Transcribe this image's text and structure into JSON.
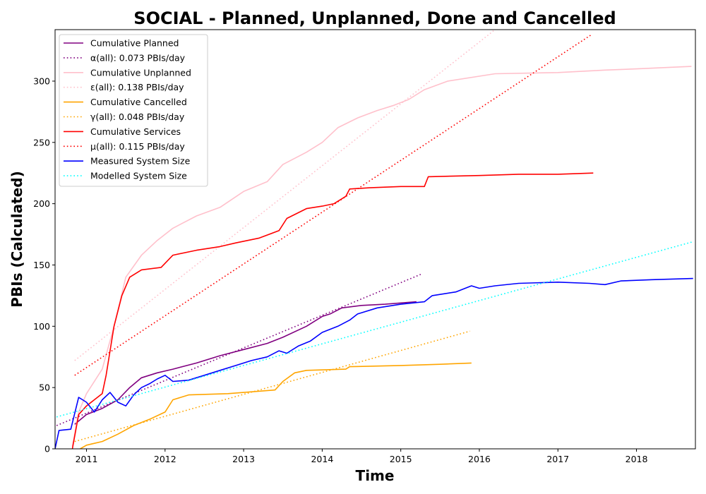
{
  "chart_data": {
    "type": "line",
    "title": "SOCIAL - Planned, Unplanned, Done  and Cancelled",
    "xlabel": "Time",
    "ylabel": "PBIs (Calculated)",
    "xlim": [
      2010.6,
      2018.75
    ],
    "ylim": [
      0,
      342
    ],
    "x_ticks": [
      2011,
      2012,
      2013,
      2014,
      2015,
      2016,
      2017,
      2018
    ],
    "x_tick_labels": [
      "2011",
      "2012",
      "2013",
      "2014",
      "2015",
      "2016",
      "2017",
      "2018"
    ],
    "y_ticks": [
      0,
      50,
      100,
      150,
      200,
      250,
      300
    ],
    "y_tick_labels": [
      "0",
      "50",
      "100",
      "150",
      "200",
      "250",
      "300"
    ],
    "grid": false,
    "legend_position": "top-left",
    "series": [
      {
        "name": "Cumulative Planned",
        "color": "#800080",
        "style": "solid",
        "points": [
          [
            2010.85,
            20
          ],
          [
            2011.0,
            28
          ],
          [
            2011.2,
            33
          ],
          [
            2011.4,
            40
          ],
          [
            2011.55,
            50
          ],
          [
            2011.7,
            58
          ],
          [
            2011.9,
            62
          ],
          [
            2012.1,
            65
          ],
          [
            2012.4,
            70
          ],
          [
            2012.7,
            76
          ],
          [
            2013.0,
            81
          ],
          [
            2013.3,
            86
          ],
          [
            2013.5,
            91
          ],
          [
            2013.8,
            100
          ],
          [
            2014.0,
            108
          ],
          [
            2014.1,
            110
          ],
          [
            2014.25,
            115
          ],
          [
            2014.5,
            117
          ],
          [
            2014.8,
            118
          ],
          [
            2015.0,
            119
          ],
          [
            2015.2,
            120
          ]
        ]
      },
      {
        "name": "α(all): 0.073 PBIs/day",
        "color": "#800080",
        "style": "dotted",
        "points": [
          [
            2010.62,
            19
          ],
          [
            2015.28,
            143
          ]
        ]
      },
      {
        "name": "Cumulative Unplanned",
        "color": "#ffc0cb",
        "style": "solid",
        "points": [
          [
            2010.82,
            2
          ],
          [
            2010.9,
            30
          ],
          [
            2011.0,
            45
          ],
          [
            2011.2,
            65
          ],
          [
            2011.35,
            100
          ],
          [
            2011.5,
            140
          ],
          [
            2011.7,
            158
          ],
          [
            2011.9,
            170
          ],
          [
            2012.1,
            180
          ],
          [
            2012.4,
            190
          ],
          [
            2012.7,
            197
          ],
          [
            2013.0,
            210
          ],
          [
            2013.3,
            218
          ],
          [
            2013.5,
            232
          ],
          [
            2013.8,
            242
          ],
          [
            2014.0,
            250
          ],
          [
            2014.2,
            262
          ],
          [
            2014.45,
            270
          ],
          [
            2014.7,
            276
          ],
          [
            2014.9,
            280
          ],
          [
            2015.1,
            285
          ],
          [
            2015.3,
            293
          ],
          [
            2015.6,
            300
          ],
          [
            2016.2,
            306
          ],
          [
            2017.0,
            307
          ],
          [
            2017.6,
            309
          ],
          [
            2018.0,
            310
          ],
          [
            2018.7,
            312
          ]
        ]
      },
      {
        "name": "ε(all): 0.138 PBIs/day",
        "color": "#ffc0cb",
        "style": "dotted",
        "points": [
          [
            2010.85,
            72
          ],
          [
            2016.2,
            342
          ]
        ]
      },
      {
        "name": "Cumulative Cancelled",
        "color": "#ffa500",
        "style": "solid",
        "points": [
          [
            2010.92,
            0
          ],
          [
            2011.0,
            3
          ],
          [
            2011.2,
            6
          ],
          [
            2011.4,
            12
          ],
          [
            2011.6,
            19
          ],
          [
            2011.8,
            24
          ],
          [
            2012.0,
            30
          ],
          [
            2012.1,
            40
          ],
          [
            2012.3,
            44
          ],
          [
            2012.8,
            45
          ],
          [
            2013.0,
            46
          ],
          [
            2013.4,
            48
          ],
          [
            2013.5,
            55
          ],
          [
            2013.65,
            62
          ],
          [
            2013.8,
            64
          ],
          [
            2014.3,
            65
          ],
          [
            2014.35,
            67
          ],
          [
            2015.0,
            68
          ],
          [
            2015.5,
            69
          ],
          [
            2015.9,
            70
          ]
        ]
      },
      {
        "name": "γ(all): 0.048 PBIs/day",
        "color": "#ffa500",
        "style": "dotted",
        "points": [
          [
            2010.85,
            6
          ],
          [
            2015.88,
            96
          ]
        ]
      },
      {
        "name": "Cumulative Services",
        "color": "#ff0000",
        "style": "solid",
        "points": [
          [
            2010.82,
            0
          ],
          [
            2010.9,
            28
          ],
          [
            2011.0,
            35
          ],
          [
            2011.1,
            40
          ],
          [
            2011.2,
            45
          ],
          [
            2011.25,
            60
          ],
          [
            2011.3,
            80
          ],
          [
            2011.35,
            100
          ],
          [
            2011.45,
            125
          ],
          [
            2011.55,
            140
          ],
          [
            2011.7,
            146
          ],
          [
            2011.95,
            148
          ],
          [
            2012.1,
            158
          ],
          [
            2012.4,
            162
          ],
          [
            2012.7,
            165
          ],
          [
            2012.9,
            168
          ],
          [
            2013.2,
            172
          ],
          [
            2013.45,
            178
          ],
          [
            2013.55,
            188
          ],
          [
            2013.8,
            196
          ],
          [
            2014.0,
            198
          ],
          [
            2014.15,
            200
          ],
          [
            2014.3,
            206
          ],
          [
            2014.35,
            212
          ],
          [
            2014.6,
            213
          ],
          [
            2015.0,
            214
          ],
          [
            2015.3,
            214
          ],
          [
            2015.35,
            222
          ],
          [
            2016.0,
            223
          ],
          [
            2016.5,
            224
          ],
          [
            2017.0,
            224
          ],
          [
            2017.45,
            225
          ]
        ]
      },
      {
        "name": "μ(all): 0.115 PBIs/day",
        "color": "#ff0000",
        "style": "dotted",
        "points": [
          [
            2010.85,
            60
          ],
          [
            2017.43,
            338
          ]
        ]
      },
      {
        "name": "Measured System Size",
        "color": "#0000ff",
        "style": "solid",
        "points": [
          [
            2010.6,
            0
          ],
          [
            2010.65,
            15
          ],
          [
            2010.8,
            16
          ],
          [
            2010.9,
            42
          ],
          [
            2010.95,
            40
          ],
          [
            2011.0,
            38
          ],
          [
            2011.1,
            30
          ],
          [
            2011.2,
            40
          ],
          [
            2011.3,
            46
          ],
          [
            2011.4,
            38
          ],
          [
            2011.5,
            35
          ],
          [
            2011.6,
            44
          ],
          [
            2011.7,
            50
          ],
          [
            2011.8,
            53
          ],
          [
            2011.9,
            57
          ],
          [
            2012.0,
            60
          ],
          [
            2012.1,
            55
          ],
          [
            2012.3,
            56
          ],
          [
            2012.5,
            60
          ],
          [
            2012.7,
            64
          ],
          [
            2012.9,
            68
          ],
          [
            2013.1,
            72
          ],
          [
            2013.3,
            75
          ],
          [
            2013.45,
            80
          ],
          [
            2013.55,
            78
          ],
          [
            2013.7,
            84
          ],
          [
            2013.85,
            88
          ],
          [
            2014.0,
            95
          ],
          [
            2014.2,
            100
          ],
          [
            2014.35,
            105
          ],
          [
            2014.45,
            110
          ],
          [
            2014.7,
            115
          ],
          [
            2015.0,
            118
          ],
          [
            2015.3,
            120
          ],
          [
            2015.4,
            125
          ],
          [
            2015.7,
            128
          ],
          [
            2015.9,
            133
          ],
          [
            2016.0,
            131
          ],
          [
            2016.2,
            133
          ],
          [
            2016.5,
            135
          ],
          [
            2017.0,
            136
          ],
          [
            2017.4,
            135
          ],
          [
            2017.6,
            134
          ],
          [
            2017.8,
            137
          ],
          [
            2018.2,
            138
          ],
          [
            2018.72,
            139
          ]
        ]
      },
      {
        "name": "Modelled System Size",
        "color": "#00ffff",
        "style": "dotted",
        "points": [
          [
            2010.62,
            26
          ],
          [
            2018.72,
            169
          ]
        ]
      }
    ]
  }
}
